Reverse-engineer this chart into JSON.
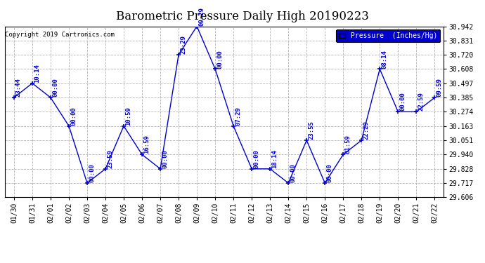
{
  "title": "Barometric Pressure Daily High 20190223",
  "copyright": "Copyright 2019 Cartronics.com",
  "legend_label": "Pressure  (Inches/Hg)",
  "dates": [
    "01/30",
    "01/31",
    "02/01",
    "02/02",
    "02/03",
    "02/04",
    "02/05",
    "02/06",
    "02/07",
    "02/08",
    "02/09",
    "02/10",
    "02/11",
    "02/12",
    "02/13",
    "02/14",
    "02/15",
    "02/16",
    "02/17",
    "02/18",
    "02/19",
    "02/20",
    "02/21",
    "02/22"
  ],
  "values": [
    30.385,
    30.497,
    30.385,
    30.163,
    29.717,
    29.828,
    30.163,
    29.94,
    29.828,
    30.72,
    30.942,
    30.608,
    30.163,
    29.828,
    29.828,
    29.717,
    30.051,
    29.717,
    29.94,
    30.051,
    30.608,
    30.274,
    30.274,
    30.385
  ],
  "times": [
    "23:44",
    "10:14",
    "00:00",
    "00:00",
    "00:00",
    "23:59",
    "10:59",
    "16:59",
    "00:00",
    "23:29",
    "09:29",
    "00:00",
    "07:29",
    "00:00",
    "18:14",
    "00:00",
    "23:55",
    "00:00",
    "01:59",
    "22:29",
    "08:14",
    "00:00",
    "22:59",
    "09:59"
  ],
  "line_color": "#0000CC",
  "marker_color": "#0000CC",
  "grid_color": "#AAAAAA",
  "bg_color": "#FFFFFF",
  "text_color": "#0000CC",
  "ylim_min": 29.606,
  "ylim_max": 30.942,
  "yticks": [
    29.606,
    29.717,
    29.828,
    29.94,
    30.051,
    30.163,
    30.274,
    30.385,
    30.497,
    30.608,
    30.72,
    30.831,
    30.942
  ],
  "title_fontsize": 12,
  "label_fontsize": 7,
  "tick_fontsize": 7,
  "annot_fontsize": 6.5
}
